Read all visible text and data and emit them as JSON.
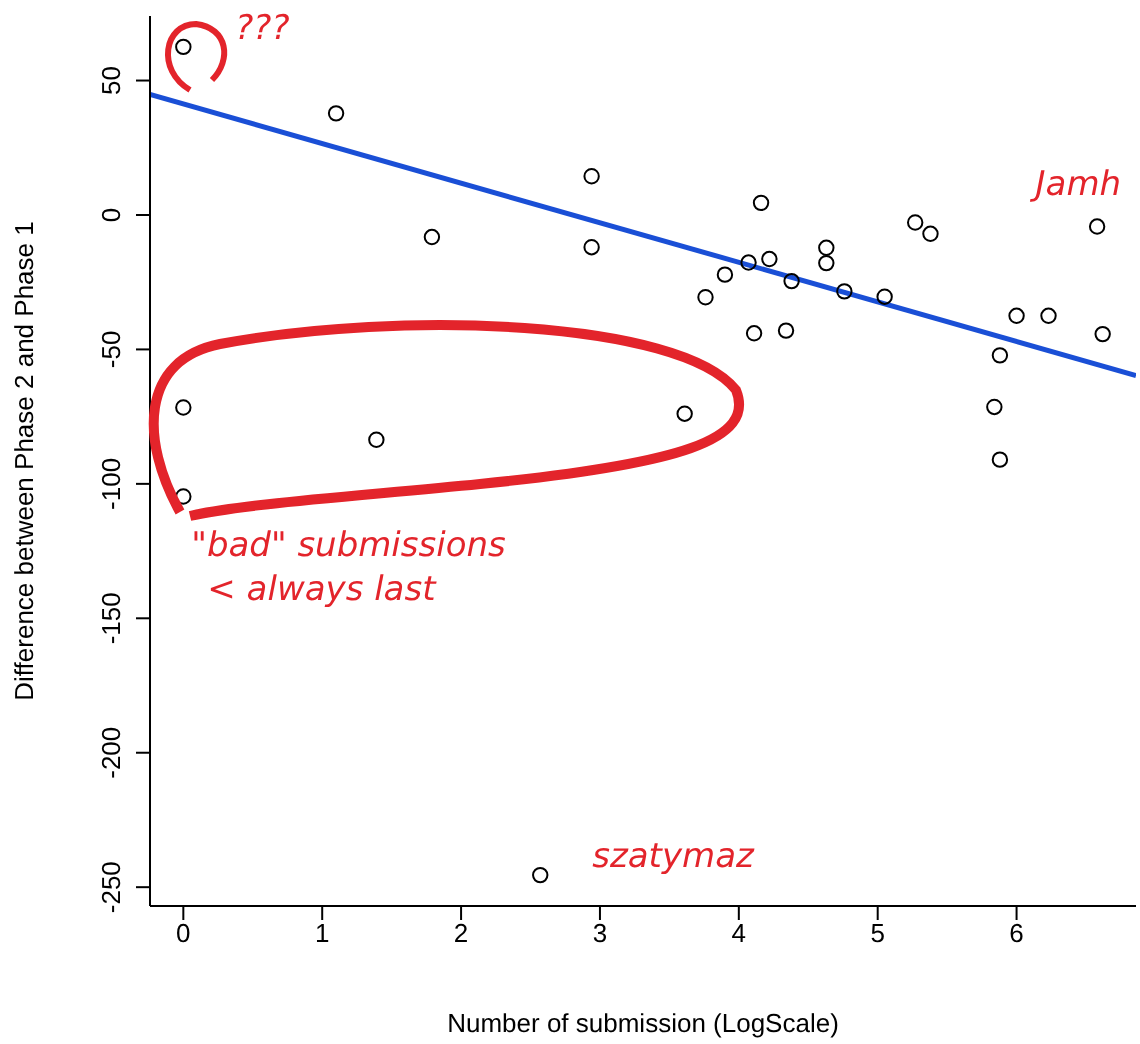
{
  "chart_data": {
    "type": "scatter",
    "xlabel": "Number of submission (LogScale)",
    "ylabel": "Difference between Phase 2 and Phase 1",
    "xlim": [
      -0.24,
      6.86
    ],
    "ylim": [
      -257,
      74
    ],
    "xticks": [
      0,
      1,
      2,
      3,
      4,
      5,
      6
    ],
    "yticks": [
      50,
      0,
      -50,
      -100,
      -150,
      -200,
      -250
    ],
    "grid": false,
    "series": [
      {
        "color": "#000000",
        "marker": "circle",
        "x": [
          0,
          1.1,
          1.79,
          2.94,
          2.94,
          0,
          1.39,
          0,
          2.57,
          4.16,
          5.27,
          5.38,
          6.58,
          4.63,
          4.63,
          4.07,
          4.22,
          3.9,
          4.38,
          4.76,
          3.76,
          5.05,
          6.0,
          6.23,
          4.11,
          4.34,
          6.62,
          5.88,
          5.84,
          5.88,
          3.61
        ],
        "values": [
          62.5,
          37.8,
          -8.2,
          14.4,
          -12,
          -71.6,
          -83.6,
          -104.7,
          -245.5,
          4.5,
          -2.8,
          -7,
          -4.3,
          -12.2,
          -17.9,
          -17.7,
          -16.4,
          -22.2,
          -24.6,
          -28.4,
          -30.6,
          -30.4,
          -37.5,
          -37.5,
          -44,
          -43,
          -44.3,
          -52.2,
          -71.4,
          -91,
          -73.9
        ]
      },
      {
        "type": "line",
        "marker": "none",
        "color": "#1a4fd6",
        "x": [
          -0.24,
          6.86
        ],
        "values": [
          44.8,
          -59.7
        ]
      }
    ],
    "annotations": [
      {
        "text": "???",
        "x": 0,
        "y": 62.5
      },
      {
        "text": "Jamh",
        "x": 6.58,
        "y": -4.3
      },
      {
        "text": "\"bad\" submissions\n< always last",
        "x": 0,
        "y": -104.7
      },
      {
        "text": "szatymaz",
        "x": 2.57,
        "y": -245.5
      }
    ]
  }
}
